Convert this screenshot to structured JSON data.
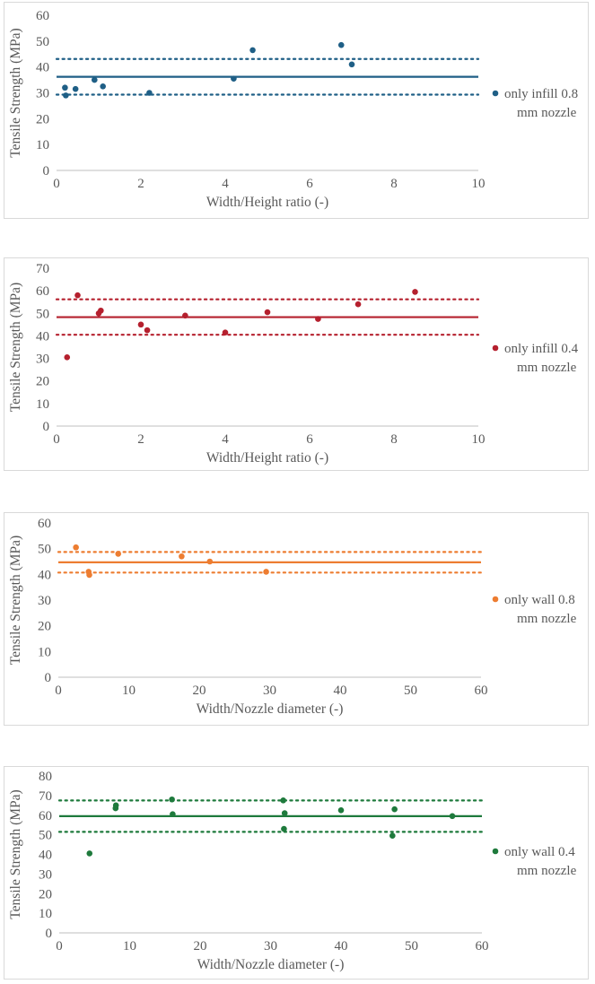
{
  "chart_data": [
    {
      "type": "scatter",
      "xlabel": "Width/Height ratio (-)",
      "ylabel": "Tensile Strength (MPa)",
      "xlim": [
        0,
        10
      ],
      "xticks": [
        0,
        2,
        4,
        6,
        8,
        10
      ],
      "ylim": [
        0,
        60
      ],
      "yticks": [
        0,
        10,
        20,
        30,
        40,
        50,
        60
      ],
      "legend": [
        "only infill 0.8",
        "mm nozzle"
      ],
      "color": "#1f5f86",
      "mean": 36.2,
      "upper": 43.1,
      "lower": 29.3,
      "points": [
        [
          0.2,
          32
        ],
        [
          0.22,
          29
        ],
        [
          0.45,
          31.5
        ],
        [
          0.9,
          35
        ],
        [
          1.1,
          32.5
        ],
        [
          2.2,
          30
        ],
        [
          4.2,
          35.5
        ],
        [
          4.65,
          46.5
        ],
        [
          6.75,
          48.5
        ],
        [
          7.0,
          41
        ]
      ]
    },
    {
      "type": "scatter",
      "xlabel": "Width/Height ratio (-)",
      "ylabel": "Tensile Strength (MPa)",
      "xlim": [
        0,
        10
      ],
      "xticks": [
        0,
        2,
        4,
        6,
        8,
        10
      ],
      "ylim": [
        0,
        70
      ],
      "yticks": [
        0,
        10,
        20,
        30,
        40,
        50,
        60,
        70
      ],
      "legend": [
        "only infill 0.4",
        "mm nozzle"
      ],
      "color": "#b5202e",
      "mean": 48.3,
      "upper": 56.2,
      "lower": 40.5,
      "points": [
        [
          0.25,
          30.5
        ],
        [
          0.5,
          58
        ],
        [
          1.0,
          50
        ],
        [
          1.05,
          51.2
        ],
        [
          2.0,
          45
        ],
        [
          2.15,
          42.5
        ],
        [
          3.05,
          49
        ],
        [
          4.0,
          41.5
        ],
        [
          5.0,
          50.5
        ],
        [
          6.2,
          47.5
        ],
        [
          7.15,
          54
        ],
        [
          8.5,
          59.5
        ]
      ]
    },
    {
      "type": "scatter",
      "xlabel": "Width/Nozzle diameter (-)",
      "ylabel": "Tensile Strength (MPa)",
      "xlim": [
        0,
        60
      ],
      "xticks": [
        0,
        10,
        20,
        30,
        40,
        50,
        60
      ],
      "ylim": [
        0,
        60
      ],
      "yticks": [
        0,
        10,
        20,
        30,
        40,
        50,
        60
      ],
      "legend": [
        "only wall 0.8",
        "mm nozzle"
      ],
      "color": "#ed7d31",
      "mean": 44.7,
      "upper": 48.7,
      "lower": 40.7,
      "points": [
        [
          2.5,
          50.5
        ],
        [
          4.3,
          41
        ],
        [
          4.4,
          39.8
        ],
        [
          8.5,
          48
        ],
        [
          17.5,
          47
        ],
        [
          21.5,
          45
        ],
        [
          29.5,
          41
        ]
      ]
    },
    {
      "type": "scatter",
      "xlabel": "Width/Nozzle diameter (-)",
      "ylabel": "Tensile Strength (MPa)",
      "xlim": [
        0,
        60
      ],
      "xticks": [
        0,
        10,
        20,
        30,
        40,
        50,
        60
      ],
      "ylim": [
        0,
        80
      ],
      "yticks": [
        0,
        10,
        20,
        30,
        40,
        50,
        60,
        70,
        80
      ],
      "legend": [
        "only wall 0.4",
        "mm nozzle"
      ],
      "color": "#1e7a3c",
      "mean": 59.5,
      "upper": 67.5,
      "lower": 51.5,
      "points": [
        [
          4.3,
          40.5
        ],
        [
          8.0,
          63.5
        ],
        [
          8.05,
          65
        ],
        [
          16.0,
          68
        ],
        [
          16.1,
          60.5
        ],
        [
          31.8,
          67.5
        ],
        [
          31.9,
          53
        ],
        [
          32.0,
          61
        ],
        [
          40.0,
          62.5
        ],
        [
          47.3,
          49.5
        ],
        [
          47.6,
          63
        ],
        [
          55.8,
          59.5
        ]
      ]
    }
  ]
}
